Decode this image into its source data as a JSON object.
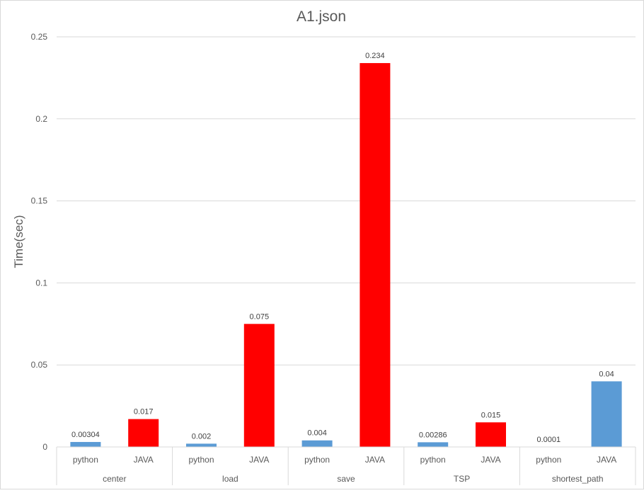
{
  "chart_data": {
    "type": "bar",
    "title": "A1.json",
    "xlabel": "",
    "ylabel": "Time(sec)",
    "ylim": [
      0,
      0.25
    ],
    "yticks": [
      "0",
      "0.05",
      "0.1",
      "0.15",
      "0.2",
      "0.25"
    ],
    "grid": true,
    "legend": "none",
    "groups": [
      "center",
      "load",
      "save",
      "TSP",
      "shortest_path"
    ],
    "bars": [
      {
        "group": "center",
        "category": "python",
        "value": 0.00304,
        "label": "0.00304",
        "color": "#5b9bd5"
      },
      {
        "group": "center",
        "category": "JAVA",
        "value": 0.017,
        "label": "0.017",
        "color": "#ff0000"
      },
      {
        "group": "load",
        "category": "python",
        "value": 0.002,
        "label": "0.002",
        "color": "#5b9bd5"
      },
      {
        "group": "load",
        "category": "JAVA",
        "value": 0.075,
        "label": "0.075",
        "color": "#ff0000"
      },
      {
        "group": "save",
        "category": "python",
        "value": 0.004,
        "label": "0.004",
        "color": "#5b9bd5"
      },
      {
        "group": "save",
        "category": "JAVA",
        "value": 0.234,
        "label": "0.234",
        "color": "#ff0000"
      },
      {
        "group": "TSP",
        "category": "python",
        "value": 0.00286,
        "label": "0.00286",
        "color": "#5b9bd5"
      },
      {
        "group": "TSP",
        "category": "JAVA",
        "value": 0.015,
        "label": "0.015",
        "color": "#ff0000"
      },
      {
        "group": "shortest_path",
        "category": "python",
        "value": 0.0001,
        "label": "0.0001",
        "color": "#5b9bd5"
      },
      {
        "group": "shortest_path",
        "category": "JAVA",
        "value": 0.04,
        "label": "0.04",
        "color": "#5b9bd5"
      }
    ]
  }
}
